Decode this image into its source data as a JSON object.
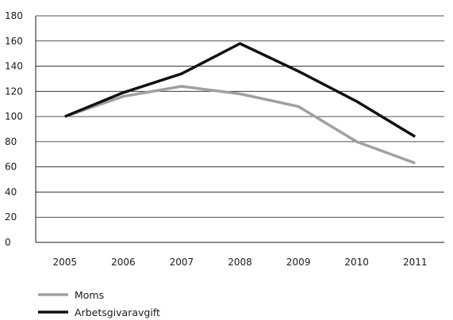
{
  "chart_data": {
    "type": "line",
    "title": "",
    "xlabel": "",
    "ylabel": "",
    "categories": [
      "2005",
      "2006",
      "2007",
      "2008",
      "2009",
      "2010",
      "2011"
    ],
    "ylim": [
      0,
      180
    ],
    "yticks": [
      0,
      20,
      40,
      60,
      80,
      100,
      120,
      140,
      160,
      180
    ],
    "grid": "horizontal",
    "legend_placement": "bottom-left",
    "series": [
      {
        "name": "Moms",
        "color": "#a0a0a0",
        "values": [
          100,
          116,
          124,
          118,
          108,
          80,
          63
        ]
      },
      {
        "name": "Arbetsgivaravgift",
        "color": "#111111",
        "values": [
          100,
          119,
          134,
          158,
          136,
          112,
          84
        ]
      }
    ]
  }
}
